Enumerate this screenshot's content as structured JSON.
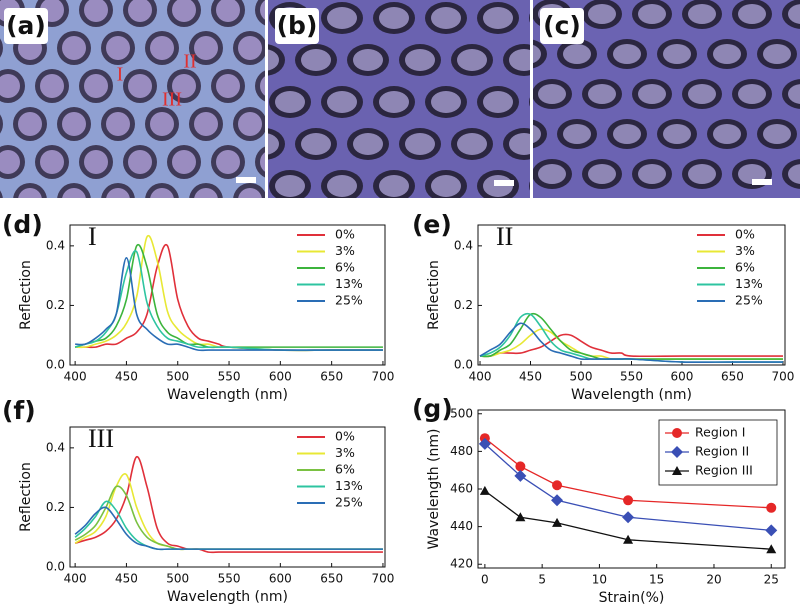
{
  "images": [
    {
      "label": "(a)",
      "annotations": [
        "I",
        "II",
        "III"
      ]
    },
    {
      "label": "(b)"
    },
    {
      "label": "(c)"
    }
  ],
  "chart_data": [
    {
      "type": "line",
      "panel": "(d)",
      "label": "I",
      "xlabel": "Wavelength (nm)",
      "ylabel": "Reflection",
      "x": [
        400,
        410,
        420,
        430,
        440,
        450,
        460,
        470,
        480,
        490,
        500,
        510,
        520,
        530,
        540,
        550,
        600,
        650,
        700
      ],
      "xlim": [
        395,
        702
      ],
      "xticks": [
        400,
        450,
        500,
        550,
        600,
        650,
        700
      ],
      "ylim": [
        0,
        0.47
      ],
      "yticks": [
        {
          "value": 0,
          "label": "0.0"
        },
        0.2,
        0.4
      ],
      "legend": "upper right",
      "series": [
        {
          "name": "0%",
          "color": "#e0303a",
          "values": [
            0.06,
            0.06,
            0.06,
            0.07,
            0.07,
            0.09,
            0.11,
            0.17,
            0.33,
            0.4,
            0.22,
            0.13,
            0.09,
            0.08,
            0.07,
            0.06,
            0.05,
            0.05,
            0.05
          ]
        },
        {
          "name": "3%",
          "color": "#e8e835",
          "values": [
            0.06,
            0.06,
            0.07,
            0.08,
            0.1,
            0.14,
            0.23,
            0.43,
            0.35,
            0.18,
            0.12,
            0.09,
            0.07,
            0.07,
            0.06,
            0.06,
            0.05,
            0.05,
            0.05
          ]
        },
        {
          "name": "6%",
          "color": "#3cb43c",
          "values": [
            0.06,
            0.07,
            0.08,
            0.09,
            0.13,
            0.22,
            0.4,
            0.33,
            0.17,
            0.11,
            0.09,
            0.07,
            0.07,
            0.06,
            0.06,
            0.06,
            0.06,
            0.06,
            0.06
          ]
        },
        {
          "name": "13%",
          "color": "#2ec4a0",
          "values": [
            0.06,
            0.07,
            0.08,
            0.11,
            0.17,
            0.31,
            0.38,
            0.21,
            0.13,
            0.09,
            0.08,
            0.07,
            0.06,
            0.06,
            0.06,
            0.06,
            0.05,
            0.05,
            0.05
          ]
        },
        {
          "name": "25%",
          "color": "#2a6db5",
          "values": [
            0.07,
            0.07,
            0.09,
            0.12,
            0.17,
            0.36,
            0.17,
            0.12,
            0.09,
            0.07,
            0.07,
            0.06,
            0.05,
            0.05,
            0.05,
            0.05,
            0.05,
            0.05,
            0.05
          ]
        }
      ]
    },
    {
      "type": "line",
      "panel": "(e)",
      "label": "II",
      "xlabel": "Wavelength (nm)",
      "ylabel": "Reflection",
      "x": [
        400,
        410,
        420,
        430,
        440,
        450,
        460,
        470,
        480,
        490,
        500,
        510,
        520,
        530,
        540,
        550,
        600,
        650,
        700
      ],
      "xlim": [
        398,
        702
      ],
      "xticks": [
        400,
        450,
        500,
        550,
        600,
        650,
        700
      ],
      "ylim": [
        0,
        0.47
      ],
      "yticks": [
        {
          "value": 0,
          "label": "0.0"
        },
        0.2,
        0.4
      ],
      "legend": "upper right",
      "series": [
        {
          "name": "0%",
          "color": "#e0303a",
          "values": [
            0.03,
            0.03,
            0.04,
            0.04,
            0.04,
            0.05,
            0.06,
            0.08,
            0.1,
            0.1,
            0.08,
            0.06,
            0.05,
            0.04,
            0.04,
            0.03,
            0.03,
            0.03,
            0.03
          ]
        },
        {
          "name": "3%",
          "color": "#e8e835",
          "values": [
            0.03,
            0.03,
            0.04,
            0.05,
            0.07,
            0.1,
            0.12,
            0.11,
            0.08,
            0.06,
            0.04,
            0.03,
            0.03,
            0.02,
            0.02,
            0.02,
            0.02,
            0.02,
            0.02
          ]
        },
        {
          "name": "6%",
          "color": "#3cb43c",
          "values": [
            0.03,
            0.03,
            0.05,
            0.07,
            0.12,
            0.17,
            0.16,
            0.12,
            0.08,
            0.05,
            0.04,
            0.03,
            0.02,
            0.02,
            0.02,
            0.02,
            0.02,
            0.02,
            0.02
          ]
        },
        {
          "name": "13%",
          "color": "#2ec4a0",
          "values": [
            0.03,
            0.04,
            0.06,
            0.1,
            0.16,
            0.17,
            0.13,
            0.08,
            0.05,
            0.04,
            0.03,
            0.02,
            0.02,
            0.02,
            0.02,
            0.02,
            0.01,
            0.01,
            0.01
          ]
        },
        {
          "name": "25%",
          "color": "#2a6db5",
          "values": [
            0.03,
            0.05,
            0.07,
            0.11,
            0.14,
            0.12,
            0.08,
            0.05,
            0.04,
            0.03,
            0.02,
            0.02,
            0.02,
            0.02,
            0.02,
            0.02,
            0.01,
            0.01,
            0.01
          ]
        }
      ]
    },
    {
      "type": "line",
      "panel": "(f)",
      "label": "III",
      "xlabel": "Wavelength (nm)",
      "ylabel": "Reflection",
      "x": [
        400,
        410,
        420,
        430,
        440,
        450,
        460,
        470,
        480,
        490,
        500,
        510,
        520,
        530,
        540,
        550,
        600,
        650,
        700
      ],
      "xlim": [
        395,
        702
      ],
      "xticks": [
        400,
        450,
        500,
        550,
        600,
        650,
        700
      ],
      "ylim": [
        0,
        0.47
      ],
      "yticks": [
        {
          "value": 0,
          "label": "0.0"
        },
        0.2,
        0.4
      ],
      "legend": "upper right",
      "series": [
        {
          "name": "0%",
          "color": "#e0303a",
          "values": [
            0.08,
            0.09,
            0.1,
            0.12,
            0.16,
            0.24,
            0.37,
            0.27,
            0.13,
            0.08,
            0.07,
            0.06,
            0.06,
            0.05,
            0.05,
            0.05,
            0.05,
            0.05,
            0.05
          ]
        },
        {
          "name": "3%",
          "color": "#e8e835",
          "values": [
            0.08,
            0.1,
            0.12,
            0.17,
            0.27,
            0.31,
            0.2,
            0.12,
            0.08,
            0.07,
            0.06,
            0.06,
            0.06,
            0.06,
            0.06,
            0.06,
            0.06,
            0.06,
            0.06
          ]
        },
        {
          "name": "6%",
          "color": "#7ac142",
          "values": [
            0.09,
            0.11,
            0.14,
            0.2,
            0.27,
            0.24,
            0.15,
            0.1,
            0.08,
            0.07,
            0.06,
            0.06,
            0.06,
            0.06,
            0.06,
            0.06,
            0.06,
            0.06,
            0.06
          ]
        },
        {
          "name": "13%",
          "color": "#2ec4a0",
          "values": [
            0.1,
            0.13,
            0.17,
            0.22,
            0.19,
            0.13,
            0.09,
            0.07,
            0.06,
            0.06,
            0.06,
            0.06,
            0.06,
            0.06,
            0.06,
            0.06,
            0.06,
            0.06,
            0.06
          ]
        },
        {
          "name": "25%",
          "color": "#2a6db5",
          "values": [
            0.11,
            0.14,
            0.18,
            0.2,
            0.16,
            0.11,
            0.08,
            0.07,
            0.06,
            0.06,
            0.06,
            0.06,
            0.06,
            0.06,
            0.06,
            0.06,
            0.06,
            0.06,
            0.06
          ]
        }
      ]
    },
    {
      "type": "line",
      "panel": "(g)",
      "xlabel": "Strain(%)",
      "ylabel": "Wavelength (nm)",
      "x": [
        0,
        3.1,
        6.3,
        12.5,
        25
      ],
      "xlim": [
        -0.6,
        26.2
      ],
      "xticks": [
        0,
        5,
        10,
        15,
        20,
        25
      ],
      "ylim": [
        418,
        502
      ],
      "yticks": [
        420,
        440,
        460,
        480,
        500
      ],
      "legend": "upper right",
      "legend_frame": true,
      "series": [
        {
          "name": "Region I",
          "color": "#e52727",
          "marker": "circle",
          "values": [
            487,
            472,
            462,
            454,
            450
          ]
        },
        {
          "name": "Region II",
          "color": "#3a4fb5",
          "marker": "diamond",
          "values": [
            484,
            467,
            454,
            445,
            438
          ]
        },
        {
          "name": "Region III",
          "color": "#111111",
          "marker": "triangle",
          "values": [
            459,
            445,
            442,
            433,
            428
          ]
        }
      ]
    }
  ]
}
